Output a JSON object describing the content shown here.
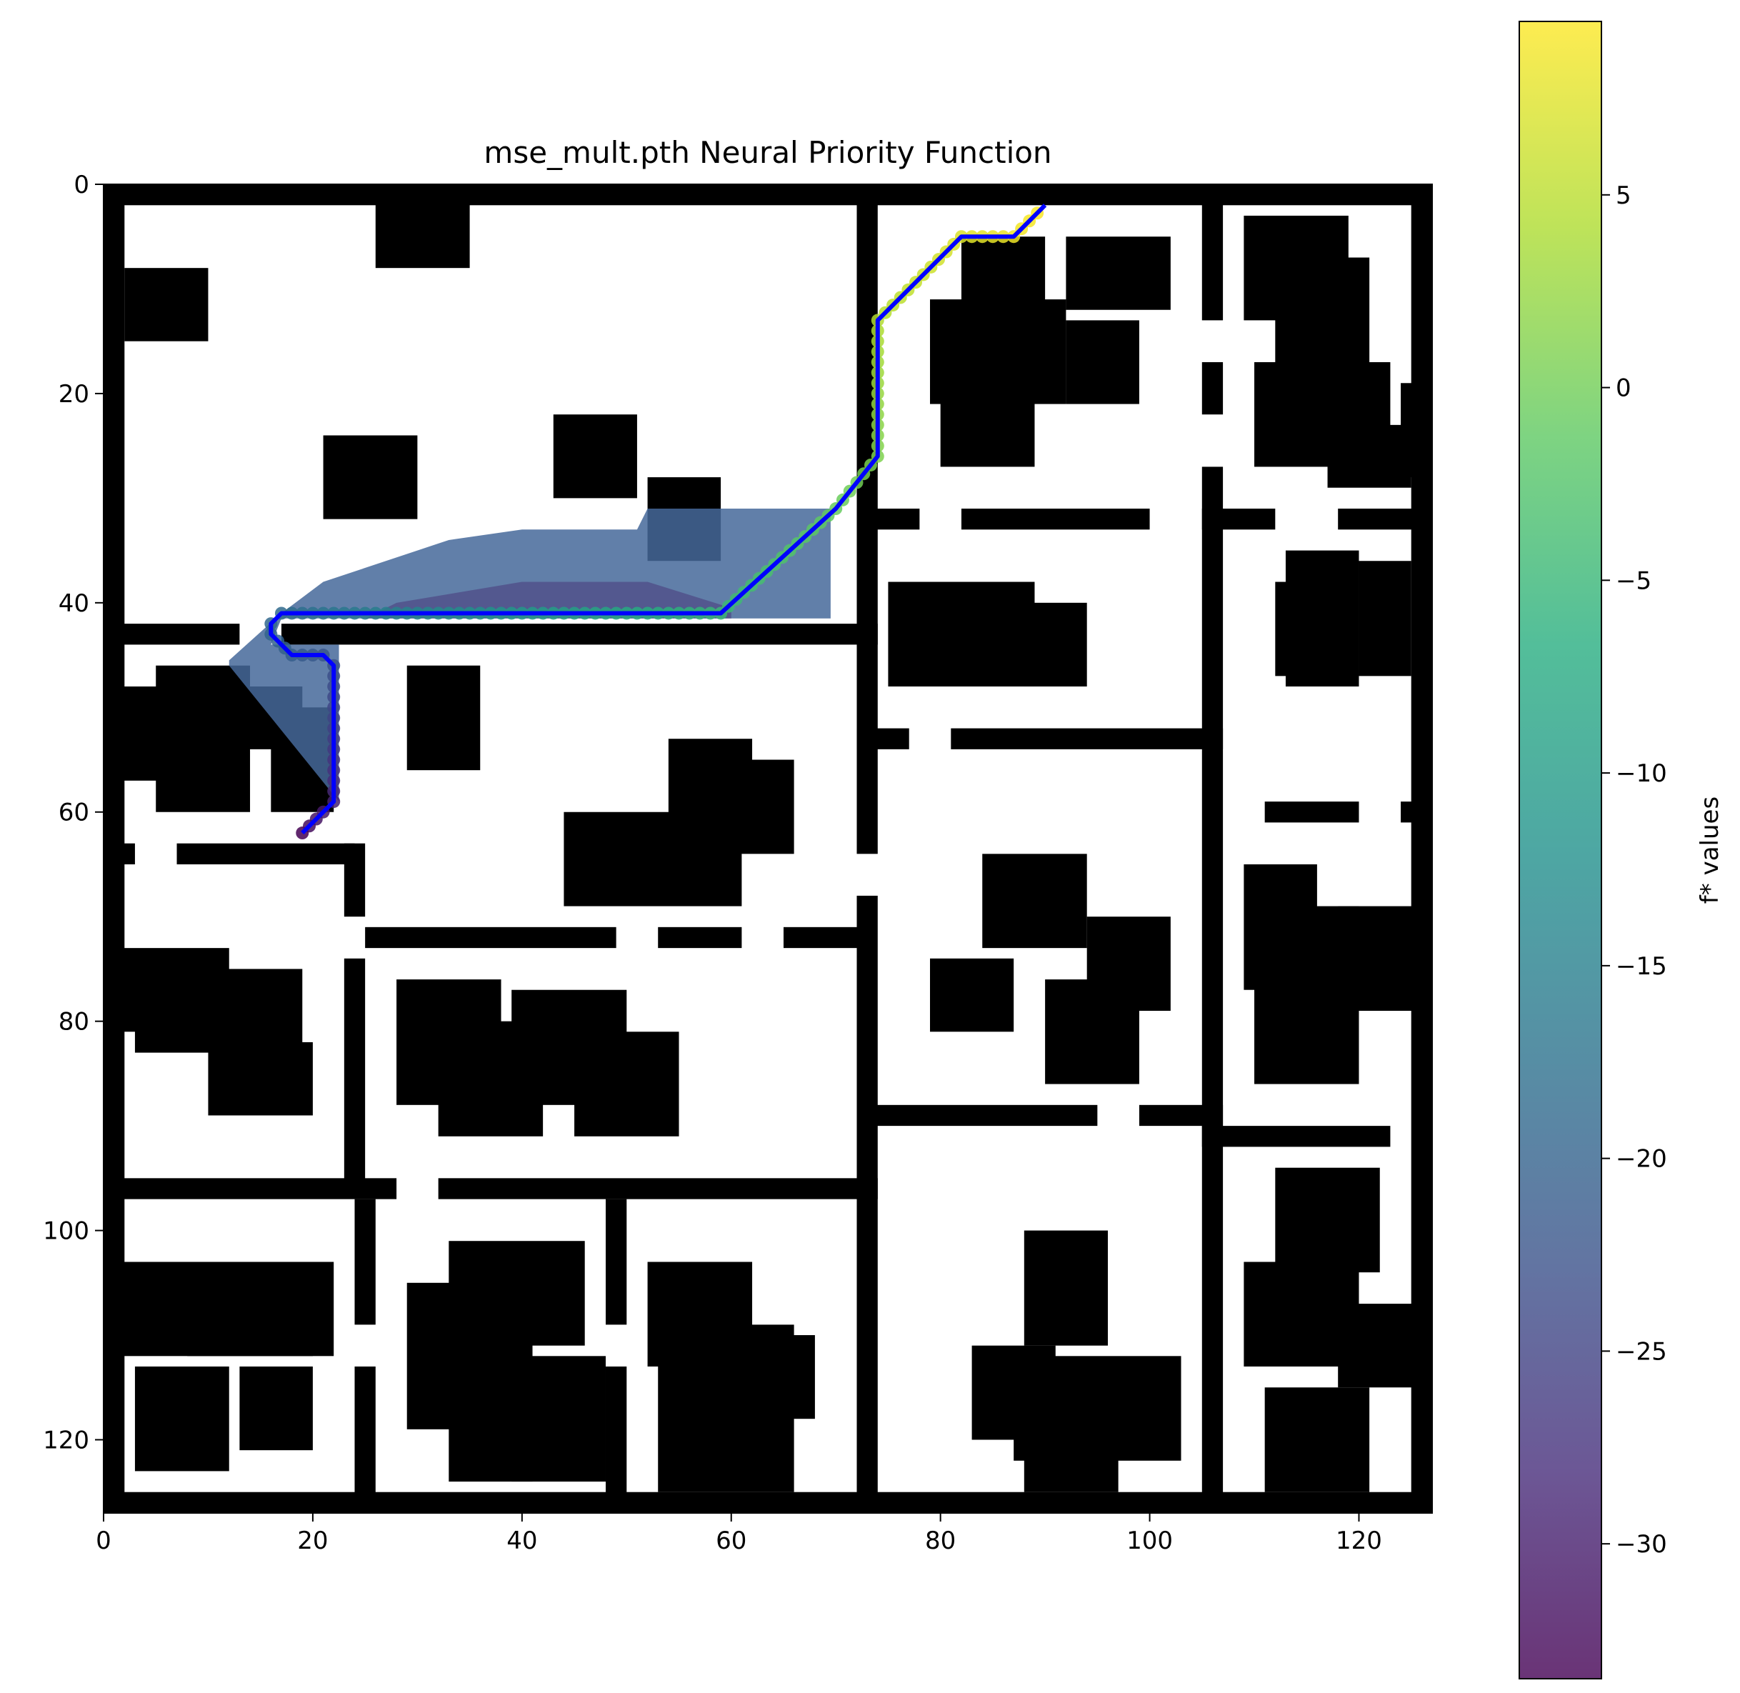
{
  "chart_data": {
    "type": "heatmap",
    "title": "mse_mult.pth Neural Priority Function",
    "xlim": [
      0,
      127
    ],
    "ylim": [
      127,
      0
    ],
    "x_ticks": [
      "0",
      "20",
      "40",
      "60",
      "80",
      "100",
      "120"
    ],
    "y_ticks": [
      "0",
      "20",
      "40",
      "60",
      "80",
      "100",
      "120"
    ],
    "x_tick_values": [
      0,
      20,
      40,
      60,
      80,
      100,
      120
    ],
    "y_tick_values": [
      0,
      20,
      40,
      60,
      80,
      100,
      120
    ],
    "colorbar": {
      "label": "f* values",
      "colormap": "viridis",
      "range": [
        -33.5,
        9.5
      ],
      "ticks": [
        "5",
        "0",
        "−5",
        "−10",
        "−15",
        "−20",
        "−25",
        "−30"
      ],
      "tick_values": [
        5,
        0,
        -5,
        -10,
        -15,
        -20,
        -25,
        -30
      ]
    },
    "obstacles": [
      [
        0,
        0,
        127,
        2
      ],
      [
        0,
        125,
        127,
        2
      ],
      [
        0,
        0,
        2,
        127
      ],
      [
        125,
        0,
        2,
        127
      ],
      [
        72,
        1,
        2,
        30
      ],
      [
        105,
        1,
        2,
        12
      ],
      [
        105,
        17,
        2,
        5
      ],
      [
        105,
        27,
        2,
        100
      ],
      [
        72,
        31,
        6,
        2
      ],
      [
        82,
        31,
        18,
        2
      ],
      [
        105,
        31,
        7,
        2
      ],
      [
        118,
        31,
        8,
        2
      ],
      [
        0,
        42,
        13,
        2
      ],
      [
        17,
        42,
        57,
        2
      ],
      [
        72,
        31,
        2,
        33
      ],
      [
        72,
        68,
        2,
        59
      ],
      [
        72,
        52,
        5,
        2
      ],
      [
        81,
        52,
        26,
        2
      ],
      [
        0,
        63,
        3,
        2
      ],
      [
        7,
        63,
        17,
        2
      ],
      [
        23,
        63,
        2,
        7
      ],
      [
        23,
        74,
        2,
        22
      ],
      [
        25,
        71,
        24,
        2
      ],
      [
        53,
        71,
        8,
        2
      ],
      [
        65,
        71,
        8,
        2
      ],
      [
        73,
        88,
        22,
        2
      ],
      [
        99,
        88,
        8,
        2
      ],
      [
        105,
        90,
        18,
        2
      ],
      [
        111,
        59,
        9,
        2
      ],
      [
        124,
        59,
        2,
        2
      ],
      [
        0,
        95,
        28,
        2
      ],
      [
        32,
        95,
        42,
        2
      ],
      [
        24,
        97,
        2,
        12
      ],
      [
        24,
        113,
        2,
        14
      ],
      [
        48,
        97,
        2,
        12
      ],
      [
        48,
        113,
        2,
        14
      ],
      [
        26,
        1,
        9,
        7
      ],
      [
        2,
        8,
        8,
        7
      ],
      [
        21,
        24,
        9,
        8
      ],
      [
        43,
        22,
        8,
        8
      ],
      [
        52,
        28,
        7,
        8
      ],
      [
        82,
        5,
        8,
        7
      ],
      [
        79,
        11,
        13,
        10
      ],
      [
        80,
        20,
        9,
        7
      ],
      [
        92,
        13,
        7,
        8
      ],
      [
        92,
        5,
        10,
        7
      ],
      [
        109,
        3,
        10,
        10
      ],
      [
        112,
        7,
        9,
        15
      ],
      [
        110,
        17,
        13,
        10
      ],
      [
        117,
        23,
        8,
        6
      ],
      [
        124,
        19,
        2,
        9
      ],
      [
        113,
        35,
        7,
        13
      ],
      [
        112,
        38,
        7,
        9
      ],
      [
        120,
        36,
        5,
        11
      ],
      [
        75,
        38,
        14,
        10
      ],
      [
        88,
        40,
        6,
        8
      ],
      [
        1,
        48,
        8,
        9
      ],
      [
        5,
        46,
        9,
        14
      ],
      [
        13,
        48,
        6,
        6
      ],
      [
        16,
        50,
        6,
        10
      ],
      [
        29,
        46,
        7,
        10
      ],
      [
        54,
        53,
        8,
        9
      ],
      [
        60,
        55,
        6,
        9
      ],
      [
        44,
        60,
        17,
        9
      ],
      [
        84,
        64,
        10,
        9
      ],
      [
        79,
        74,
        8,
        7
      ],
      [
        90,
        76,
        9,
        10
      ],
      [
        94,
        70,
        8,
        9
      ],
      [
        109,
        65,
        7,
        12
      ],
      [
        110,
        69,
        10,
        17
      ],
      [
        118,
        69,
        8,
        10
      ],
      [
        1,
        73,
        11,
        8
      ],
      [
        3,
        75,
        16,
        8
      ],
      [
        10,
        82,
        10,
        7
      ],
      [
        28,
        76,
        10,
        12
      ],
      [
        32,
        80,
        10,
        11
      ],
      [
        39,
        77,
        11,
        11
      ],
      [
        45,
        81,
        10,
        10
      ],
      [
        1,
        103,
        21,
        9
      ],
      [
        8,
        108,
        12,
        4
      ],
      [
        3,
        113,
        9,
        10
      ],
      [
        13,
        113,
        7,
        8
      ],
      [
        88,
        100,
        8,
        11
      ],
      [
        83,
        111,
        8,
        9
      ],
      [
        87,
        112,
        16,
        10
      ],
      [
        88,
        117,
        9,
        8
      ],
      [
        112,
        94,
        10,
        10
      ],
      [
        109,
        103,
        11,
        10
      ],
      [
        118,
        107,
        8,
        8
      ],
      [
        111,
        115,
        10,
        10
      ],
      [
        33,
        101,
        13,
        10
      ],
      [
        29,
        105,
        12,
        14
      ],
      [
        33,
        111,
        8,
        13
      ],
      [
        39,
        112,
        9,
        12
      ],
      [
        52,
        103,
        10,
        10
      ],
      [
        53,
        109,
        13,
        16
      ],
      [
        62,
        110,
        6,
        8
      ]
    ],
    "path": [
      [
        19,
        62
      ],
      [
        21,
        60
      ],
      [
        22,
        59
      ],
      [
        22,
        46
      ],
      [
        21,
        45
      ],
      [
        18,
        45
      ],
      [
        16,
        43
      ],
      [
        16,
        42
      ],
      [
        17,
        41
      ],
      [
        59,
        41
      ],
      [
        70,
        31
      ],
      [
        74,
        26
      ],
      [
        74,
        13
      ],
      [
        82,
        5
      ],
      [
        87,
        5
      ],
      [
        90,
        2
      ]
    ]
  }
}
